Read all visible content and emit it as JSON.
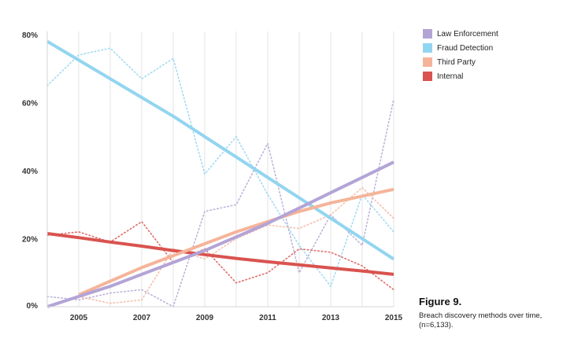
{
  "figure": {
    "title": "Figure 9.",
    "description": "Breach discovery methods over time, (n=6,133)."
  },
  "chart_data": {
    "type": "line",
    "xlim": [
      2004,
      2015
    ],
    "ylim": [
      0,
      80
    ],
    "x_ticks": [
      2005,
      2007,
      2009,
      2011,
      2013,
      2015
    ],
    "y_ticks": [
      0,
      20,
      40,
      60,
      80
    ],
    "x_tick_labels": [
      "2005",
      "2007",
      "2009",
      "2011",
      "2013",
      "2015"
    ],
    "y_tick_labels": [
      "0%",
      "20%",
      "40%",
      "60%",
      "80%"
    ],
    "grid": "vertical",
    "legend_position": "top-right",
    "x": [
      2004,
      2005,
      2006,
      2007,
      2008,
      2009,
      2010,
      2011,
      2012,
      2013,
      2014,
      2015
    ],
    "series": [
      {
        "name": "Law Enforcement",
        "color": "#b3a4d6",
        "raw": [
          3,
          2,
          4,
          5,
          0,
          28,
          30,
          48,
          10,
          27,
          18,
          61
        ],
        "trend": [
          0,
          3,
          6,
          9.5,
          13,
          16.5,
          20.5,
          24.5,
          29,
          33.5,
          38,
          42.5
        ]
      },
      {
        "name": "Fraud Detection",
        "color": "#92d5f0",
        "raw": [
          65,
          74,
          76,
          67,
          73,
          39,
          50,
          33,
          18,
          6,
          33,
          22
        ],
        "trend": [
          78,
          72.5,
          67,
          61.5,
          56,
          50,
          44,
          38,
          32,
          26,
          20,
          14
        ]
      },
      {
        "name": "Third Party",
        "color": "#f5b49a",
        "raw": [
          null,
          3,
          1,
          2,
          17,
          14,
          20,
          24,
          23,
          27,
          35,
          26
        ],
        "trend": [
          null,
          3.5,
          7.5,
          11.5,
          15,
          18.5,
          22,
          25,
          28,
          30.5,
          32.5,
          34.5
        ]
      },
      {
        "name": "Internal",
        "color": "#d9534f",
        "raw": [
          21,
          22,
          19,
          25,
          13,
          17,
          7,
          10,
          17,
          16,
          12,
          5
        ],
        "trend": [
          21.5,
          20.3,
          19,
          17.8,
          16.5,
          15.3,
          14.2,
          13.2,
          12.3,
          11.4,
          10.5,
          9.5
        ]
      }
    ]
  }
}
